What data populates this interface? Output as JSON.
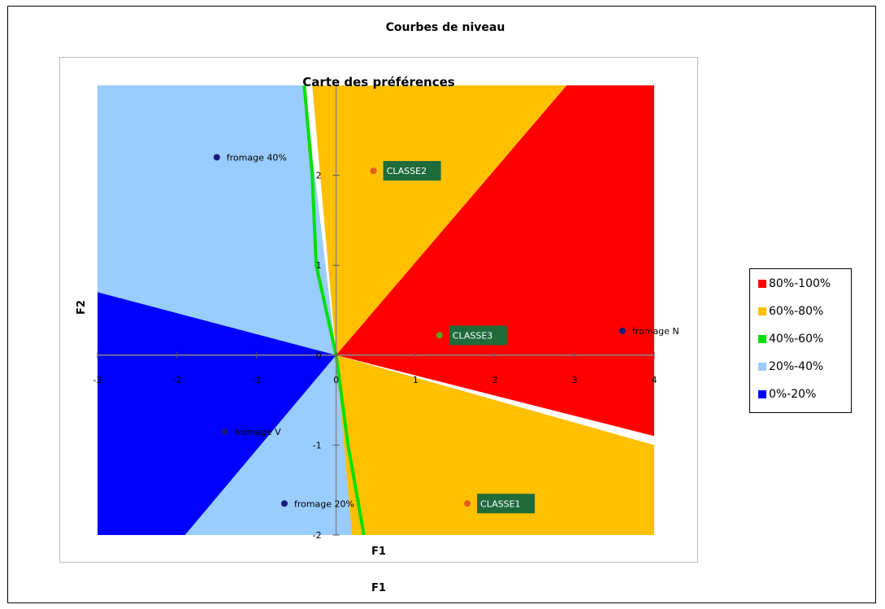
{
  "chart_data": {
    "type": "heatmap",
    "title": "Courbes de niveau",
    "subtitle": "Carte des préférences",
    "xlabel": "F1",
    "xlabel_inner": "F1",
    "ylabel": "F2",
    "xlim": [
      -3,
      4
    ],
    "ylim": [
      -2,
      3
    ],
    "x_ticks": [
      "-3",
      "-2",
      "-1",
      "0",
      "1",
      "2",
      "3",
      "4"
    ],
    "y_ticks": [
      "-2",
      "-1",
      "0",
      "1",
      "2"
    ],
    "legend": [
      {
        "label": "80%-100%",
        "color": "#ff0000"
      },
      {
        "label": "60%-80%",
        "color": "#ffc000"
      },
      {
        "label": "40%-60%",
        "color": "#00e000"
      },
      {
        "label": "20%-40%",
        "color": "#99ccff"
      },
      {
        "label": "0%-20%",
        "color": "#0000ff"
      }
    ],
    "legend_placement": "right",
    "points": [
      {
        "label": "fromage 40%",
        "x": -1.5,
        "y": 2.2,
        "color": "#1a1a7a",
        "boxed": false
      },
      {
        "label": "CLASSE2",
        "x": 0.47,
        "y": 2.05,
        "color": "#e06020",
        "boxed": true
      },
      {
        "label": "CLASSE3",
        "x": 1.3,
        "y": 0.22,
        "color": "#60a020",
        "boxed": true
      },
      {
        "label": "fromage N",
        "x": 3.6,
        "y": 0.27,
        "color": "#1a1a7a",
        "boxed": false
      },
      {
        "label": "fromage V",
        "x": -1.4,
        "y": -0.85,
        "color": "#1a1a7a",
        "boxed": false
      },
      {
        "label": "fromage 20%",
        "x": -0.65,
        "y": -1.65,
        "color": "#1a1a7a",
        "boxed": false
      },
      {
        "label": "CLASSE1",
        "x": 1.65,
        "y": -1.65,
        "color": "#e06020",
        "boxed": true
      }
    ]
  }
}
